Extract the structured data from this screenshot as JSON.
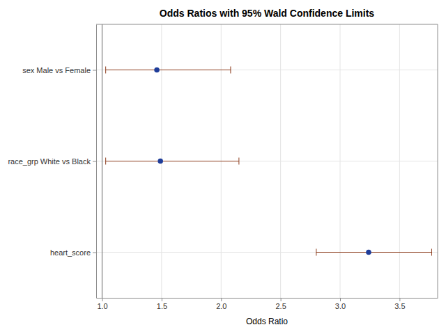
{
  "chart_data": {
    "type": "forest",
    "title": "Odds Ratios with 95% Wald Confidence Limits",
    "x_label": "Odds Ratio",
    "orientation": "horizontal",
    "categories": [
      "sex Male vs Female",
      "race_grp White vs Black",
      "heart_score"
    ],
    "values": [
      1.46,
      1.49,
      3.24
    ],
    "lower": [
      1.03,
      1.03,
      2.8
    ],
    "upper": [
      2.08,
      2.15,
      3.77
    ],
    "reference_line": 1,
    "color": "#1f3d99",
    "marker": "circle",
    "xlim": [
      0.95,
      3.82
    ],
    "xticks": [
      {
        "value": 1,
        "label": "1.0"
      },
      1.5,
      {
        "value": 2,
        "label": "2.0"
      },
      2.5,
      {
        "value": 3,
        "label": "3.0"
      },
      3.5
    ],
    "grid": true
  }
}
